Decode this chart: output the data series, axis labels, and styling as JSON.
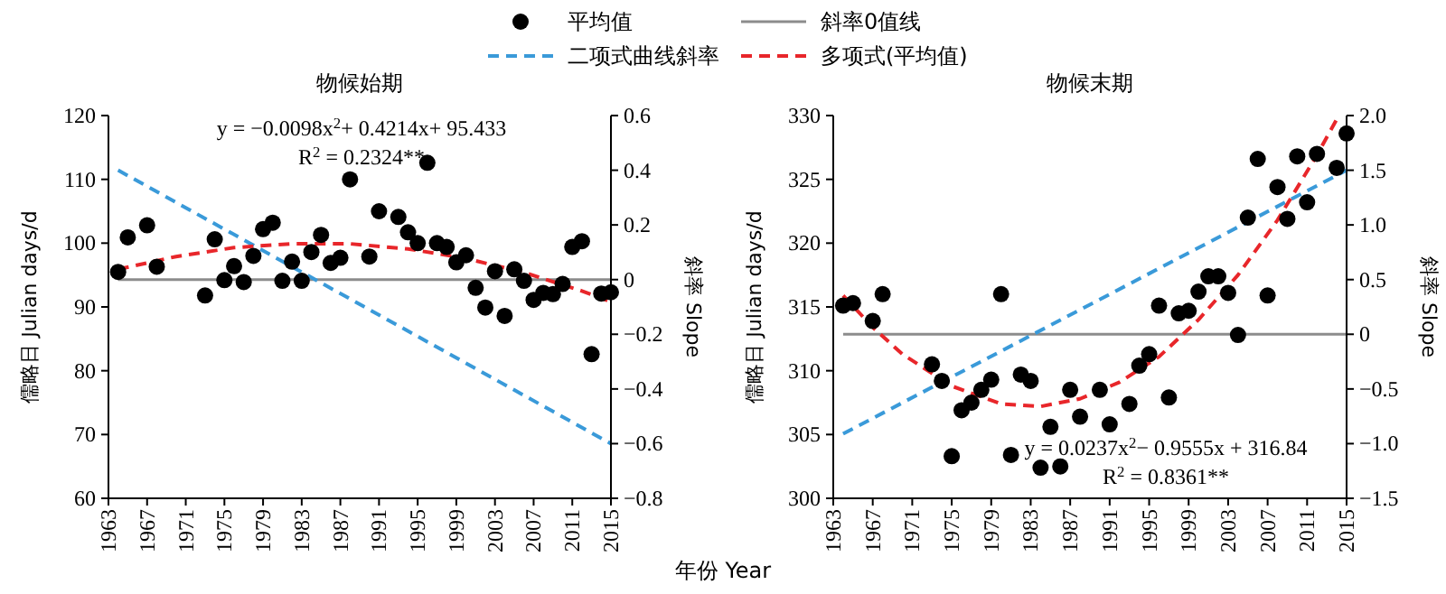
{
  "chart_data": [
    {
      "type": "scatter",
      "title": "物候始期",
      "xlabel": "年份 Year",
      "ylabel": "儒略日 Julian days/d",
      "y2label": "斜率 Slope",
      "xlim": [
        1963,
        2015
      ],
      "xticks": [
        1963,
        1967,
        1971,
        1975,
        1979,
        1983,
        1987,
        1991,
        1995,
        1999,
        2003,
        2007,
        2011,
        2015
      ],
      "ylim": [
        60,
        120
      ],
      "yticks": [
        60,
        70,
        80,
        90,
        100,
        110,
        120
      ],
      "y2lim": [
        -0.8,
        0.6
      ],
      "y2ticks": [
        {
          "value": -0.8,
          "label": "−0.8"
        },
        {
          "value": -0.6,
          "label": "−0.6"
        },
        {
          "value": -0.4,
          "label": "−0.4"
        },
        {
          "value": -0.2,
          "label": "−0.2"
        },
        0,
        0.2,
        0.4,
        0.6
      ],
      "legend": "top",
      "annotations": [
        "y = −0.0098x$^{2}$+ 0.4214x+ 95.433",
        "R$^{2}$ = 0.2324**"
      ],
      "series": [
        {
          "name": "平均值",
          "marker": "circle",
          "color": "#000000",
          "x": [
            1964,
            1965,
            1967,
            1968,
            1973,
            1974,
            1975,
            1976,
            1977,
            1978,
            1979,
            1980,
            1981,
            1982,
            1983,
            1984,
            1985,
            1986,
            1987,
            1988,
            1990,
            1991,
            1993,
            1994,
            1995,
            1996,
            1997,
            1998,
            1999,
            2000,
            2001,
            2002,
            2003,
            2004,
            2005,
            2006,
            2007,
            2008,
            2009,
            2010,
            2011,
            2012,
            2013,
            2014,
            2015
          ],
          "values": [
            95.5,
            100.9,
            102.8,
            96.3,
            91.8,
            100.6,
            94.2,
            96.4,
            93.9,
            98.0,
            102.2,
            103.2,
            94.1,
            97.1,
            94.1,
            98.6,
            101.3,
            96.9,
            97.7,
            110.0,
            97.9,
            105.0,
            104.1,
            101.7,
            100.0,
            112.6,
            100.0,
            99.4,
            97.0,
            98.1,
            93.0,
            89.9,
            95.6,
            88.6,
            95.9,
            94.1,
            91.1,
            92.2,
            92.0,
            93.6,
            99.4,
            100.3,
            82.6,
            92.1,
            92.3
          ]
        },
        {
          "name": "斜率0值线",
          "type": "line",
          "axis": "y2",
          "color": "#8c8c8c",
          "line_style": "solid",
          "x": [
            1964,
            2015
          ],
          "values": [
            0,
            0
          ]
        },
        {
          "name": "二项式曲线斜率",
          "type": "line",
          "axis": "y2",
          "color": "#3a9ad9",
          "line_style": "dashed",
          "x": [
            1964,
            2015
          ],
          "values": [
            0.4,
            -0.6
          ]
        },
        {
          "name": "多项式(平均值)",
          "type": "line",
          "color": "#e8262a",
          "line_style": "dashed",
          "x": [
            1964,
            1970,
            1976,
            1982,
            1988,
            1994,
            2000,
            2006,
            2012,
            2015
          ],
          "values": [
            95.9,
            97.9,
            99.3,
            99.9,
            99.9,
            99.1,
            97.6,
            95.4,
            92.5,
            90.8
          ]
        }
      ]
    },
    {
      "type": "scatter",
      "title": "物候末期",
      "ylabel": "儒略日 Julian days/d",
      "y2label": "斜率 Slope",
      "xlim": [
        1963,
        2015
      ],
      "xticks": [
        1963,
        1967,
        1971,
        1975,
        1979,
        1983,
        1987,
        1991,
        1995,
        1999,
        2003,
        2007,
        2011,
        2015
      ],
      "ylim": [
        300,
        330
      ],
      "yticks": [
        300,
        305,
        310,
        315,
        320,
        325,
        330
      ],
      "y2lim": [
        -1.5,
        2.0
      ],
      "y2ticks": [
        {
          "value": -1.5,
          "label": "−1.5"
        },
        {
          "value": -1.0,
          "label": "−1.0"
        },
        {
          "value": -0.5,
          "label": "−0.5"
        },
        0,
        0.5,
        {
          "value": 1.0,
          "label": "1.0"
        },
        1.5,
        {
          "value": 2.0,
          "label": "2.0"
        }
      ],
      "annotations": [
        "y = 0.0237x$^{2}$−  0.9555x + 316.84",
        "R$^{2}$ = 0.8361**"
      ],
      "series": [
        {
          "marker": "circle",
          "color": "#000000",
          "x": [
            1964,
            1965,
            1967,
            1968,
            1973,
            1974,
            1975,
            1976,
            1977,
            1978,
            1979,
            1980,
            1981,
            1982,
            1983,
            1984,
            1985,
            1986,
            1987,
            1988,
            1990,
            1991,
            1993,
            1994,
            1995,
            1996,
            1997,
            1998,
            1999,
            2000,
            2001,
            2002,
            2003,
            2004,
            2005,
            2006,
            2007,
            2008,
            2009,
            2010,
            2011,
            2012,
            2014,
            2015
          ],
          "values": [
            315.1,
            315.3,
            313.9,
            316.0,
            310.5,
            309.2,
            303.3,
            306.9,
            307.5,
            308.5,
            309.3,
            316.0,
            303.4,
            309.7,
            309.2,
            302.4,
            305.6,
            302.5,
            308.5,
            306.4,
            308.5,
            305.8,
            307.4,
            310.4,
            311.3,
            315.1,
            307.9,
            314.5,
            314.7,
            316.2,
            317.4,
            317.4,
            316.1,
            312.8,
            322.0,
            326.6,
            315.9,
            324.4,
            321.9,
            326.8,
            323.2,
            327.0,
            325.9,
            328.6
          ]
        },
        {
          "type": "line",
          "axis": "y2",
          "color": "#8c8c8c",
          "line_style": "solid",
          "x": [
            1964,
            2015
          ],
          "values": [
            0,
            0
          ]
        },
        {
          "type": "line",
          "axis": "y2",
          "color": "#3a9ad9",
          "line_style": "dashed",
          "x": [
            1964,
            2015
          ],
          "values": [
            -0.91,
            1.5
          ]
        },
        {
          "type": "line",
          "color": "#e8262a",
          "line_style": "dashed",
          "x": [
            1964,
            1967,
            1970,
            1975,
            1980,
            1984,
            1988,
            1992,
            1996,
            2000,
            2004,
            2008,
            2012,
            2014
          ],
          "values": [
            315.9,
            313.4,
            311.3,
            308.8,
            307.4,
            307.2,
            307.8,
            309.1,
            311.1,
            314.0,
            317.5,
            321.8,
            326.9,
            329.7
          ]
        }
      ]
    }
  ]
}
